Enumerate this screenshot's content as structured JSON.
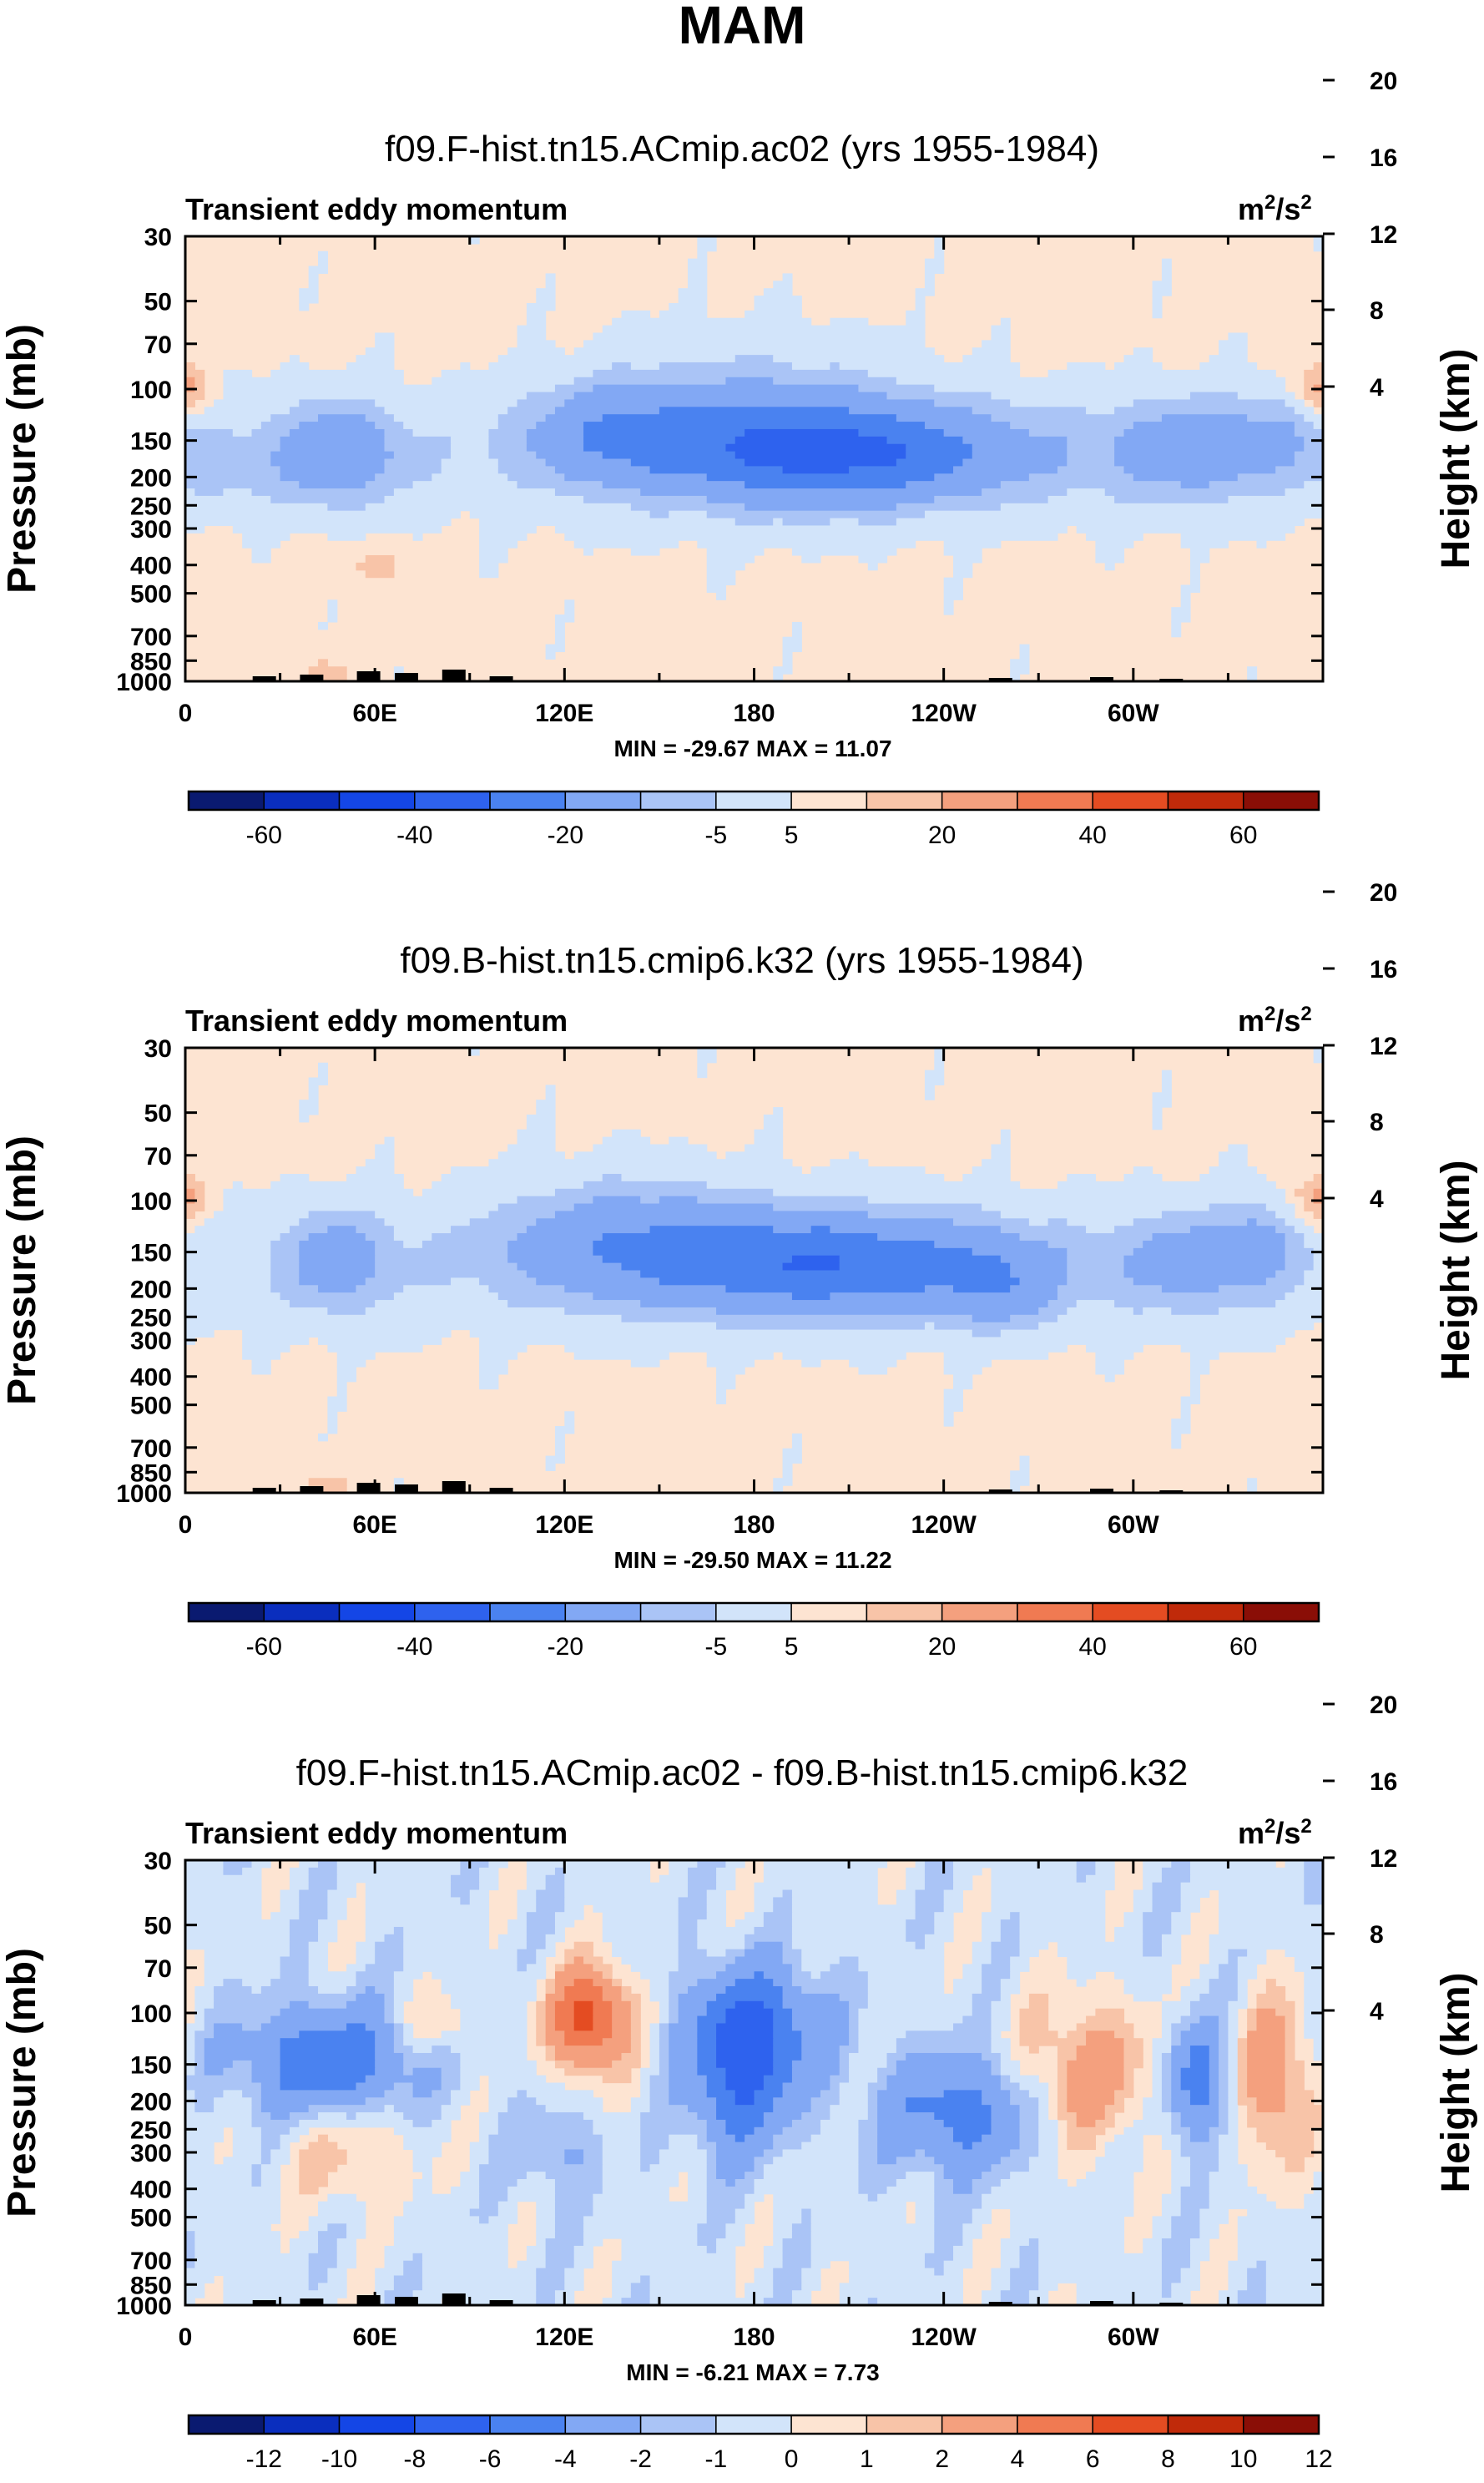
{
  "figure": {
    "title": "MAM",
    "x_tick_labels": [
      "0",
      "60E",
      "120E",
      "180",
      "120W",
      "60W"
    ],
    "y_left_label": "Pressure (mb)",
    "y_right_label": "Height (km)",
    "pressure_ticks": [
      "30",
      "50",
      "70",
      "100",
      "150",
      "200",
      "250",
      "300",
      "400",
      "500",
      "700",
      "850",
      "1000"
    ],
    "height_ticks": [
      "4",
      "8",
      "12",
      "16",
      "20"
    ],
    "variable_label": "Transient eddy momentum",
    "units_base": "m",
    "units_exp1": "2",
    "units_mid": "/s",
    "units_exp2": "2"
  },
  "colors": {
    "palette": [
      "#0a1a70",
      "#0a2ebe",
      "#1446e6",
      "#2e62ee",
      "#4a82f0",
      "#82a8f4",
      "#aac4f6",
      "#d2e4fa",
      "#fde4d2",
      "#f8c4a8",
      "#f4a07e",
      "#f07a52",
      "#e44c22",
      "#c02a0a",
      "#8a0e06"
    ],
    "background": "#ffffff",
    "topography": "#000000"
  },
  "chart_data": [
    {
      "type": "heatmap",
      "title": "f09.F-hist.tn15.ACmip.ac02 (yrs 1955-1984)",
      "stats": "MIN = -29.67  MAX = 11.07",
      "colorbar_labels": [
        "-60",
        "-40",
        "-20",
        "-5",
        "5",
        "20",
        "40",
        "60"
      ],
      "colorbar_levels": [
        -70,
        -60,
        -50,
        -40,
        -30,
        -20,
        -10,
        -5,
        0,
        5,
        10,
        20,
        30,
        40,
        50,
        60,
        70
      ],
      "min": -29.67,
      "max": 11.07,
      "xlim": [
        0,
        360
      ],
      "ylim": [
        1000,
        30
      ],
      "blobs": [
        {
          "lon": 210,
          "p": 165,
          "slon": 38,
          "slogp": 0.12,
          "amp": -27
        },
        {
          "lon": 135,
          "p": 140,
          "slon": 20,
          "slogp": 0.12,
          "amp": -14
        },
        {
          "lon": 178,
          "p": 130,
          "slon": 30,
          "slogp": 0.18,
          "amp": -10
        },
        {
          "lon": 48,
          "p": 165,
          "slon": 14,
          "slogp": 0.12,
          "amp": -15
        },
        {
          "lon": 318,
          "p": 160,
          "slon": 18,
          "slogp": 0.12,
          "amp": -13
        },
        {
          "lon": 345,
          "p": 140,
          "slon": 10,
          "slogp": 0.1,
          "amp": -6
        },
        {
          "lon": 12,
          "p": 190,
          "slon": 10,
          "slogp": 0.08,
          "amp": -5
        },
        {
          "lon": 60,
          "p": 400,
          "slon": 8,
          "slogp": 0.05,
          "amp": 6
        },
        {
          "lon": 2,
          "p": 100,
          "slon": 5,
          "slogp": 0.06,
          "amp": 7
        },
        {
          "lon": 356,
          "p": 100,
          "slon": 5,
          "slogp": 0.06,
          "amp": 7
        },
        {
          "lon": 44,
          "p": 950,
          "slon": 6,
          "slogp": 0.04,
          "amp": 8
        }
      ],
      "band": {
        "p": 170,
        "slogp": 0.2,
        "amp": -4
      },
      "offset": 0.8
    },
    {
      "type": "heatmap",
      "title": "f09.B-hist.tn15.cmip6.k32 (yrs 1955-1984)",
      "stats": "MIN = -29.50  MAX = 11.22",
      "colorbar_labels": [
        "-60",
        "-40",
        "-20",
        "-5",
        "5",
        "20",
        "40",
        "60"
      ],
      "colorbar_levels": [
        -70,
        -60,
        -50,
        -40,
        -30,
        -20,
        -10,
        -5,
        0,
        5,
        10,
        20,
        30,
        40,
        50,
        60,
        70
      ],
      "min": -29.5,
      "max": 11.22,
      "xlim": [
        0,
        360
      ],
      "ylim": [
        1000,
        30
      ],
      "blobs": [
        {
          "lon": 205,
          "p": 165,
          "slon": 40,
          "slogp": 0.12,
          "amp": -26
        },
        {
          "lon": 140,
          "p": 135,
          "slon": 30,
          "slogp": 0.14,
          "amp": -14
        },
        {
          "lon": 48,
          "p": 160,
          "slon": 12,
          "slogp": 0.12,
          "amp": -12
        },
        {
          "lon": 318,
          "p": 160,
          "slon": 16,
          "slogp": 0.12,
          "amp": -11
        },
        {
          "lon": 258,
          "p": 200,
          "slon": 12,
          "slogp": 0.1,
          "amp": -10
        },
        {
          "lon": 340,
          "p": 140,
          "slon": 8,
          "slogp": 0.1,
          "amp": -9
        },
        {
          "lon": 2,
          "p": 100,
          "slon": 5,
          "slogp": 0.06,
          "amp": 7
        },
        {
          "lon": 356,
          "p": 100,
          "slon": 5,
          "slogp": 0.06,
          "amp": 7
        },
        {
          "lon": 44,
          "p": 960,
          "slon": 6,
          "slogp": 0.04,
          "amp": 8
        }
      ],
      "band": {
        "p": 170,
        "slogp": 0.2,
        "amp": -4
      },
      "offset": 0.8
    },
    {
      "type": "heatmap",
      "title": "f09.F-hist.tn15.ACmip.ac02 - f09.B-hist.tn15.cmip6.k32",
      "stats": "MIN =  -6.21  MAX =  7.73",
      "colorbar_labels": [
        "-12",
        "-10",
        "-8",
        "-6",
        "-4",
        "-2",
        "-1",
        "0",
        "1",
        "2",
        "4",
        "6",
        "8",
        "10",
        "12"
      ],
      "colorbar_levels": [
        -14,
        -12,
        -10,
        -8,
        -6,
        -4,
        -2,
        -1,
        0,
        1,
        2,
        4,
        6,
        8,
        10,
        12,
        14
      ],
      "min": -6.21,
      "max": 7.73,
      "xlim": [
        0,
        360
      ],
      "ylim": [
        1000,
        30
      ],
      "blobs": [
        {
          "lon": 45,
          "p": 145,
          "slon": 20,
          "slogp": 0.13,
          "amp": -5
        },
        {
          "lon": 128,
          "p": 105,
          "slon": 9,
          "slogp": 0.12,
          "amp": 7.5
        },
        {
          "lon": 180,
          "p": 115,
          "slon": 15,
          "slogp": 0.15,
          "amp": -6
        },
        {
          "lon": 175,
          "p": 200,
          "slon": 10,
          "slogp": 0.15,
          "amp": -4
        },
        {
          "lon": 245,
          "p": 220,
          "slon": 17,
          "slogp": 0.14,
          "amp": -4.5
        },
        {
          "lon": 285,
          "p": 160,
          "slon": 15,
          "slogp": 0.18,
          "amp": 3.5
        },
        {
          "lon": 320,
          "p": 170,
          "slon": 7,
          "slogp": 0.14,
          "amp": -4.5
        },
        {
          "lon": 345,
          "p": 170,
          "slon": 8,
          "slogp": 0.2,
          "amp": 4
        },
        {
          "lon": 80,
          "p": 110,
          "slon": 8,
          "slogp": 0.08,
          "amp": 2
        },
        {
          "lon": 52,
          "p": 310,
          "slon": 15,
          "slogp": 0.12,
          "amp": 2
        },
        {
          "lon": 118,
          "p": 300,
          "slon": 10,
          "slogp": 0.1,
          "amp": -1.8
        }
      ],
      "band": {
        "p": 500,
        "slogp": 0.3,
        "amp": 0
      },
      "offset": -0.5
    }
  ]
}
